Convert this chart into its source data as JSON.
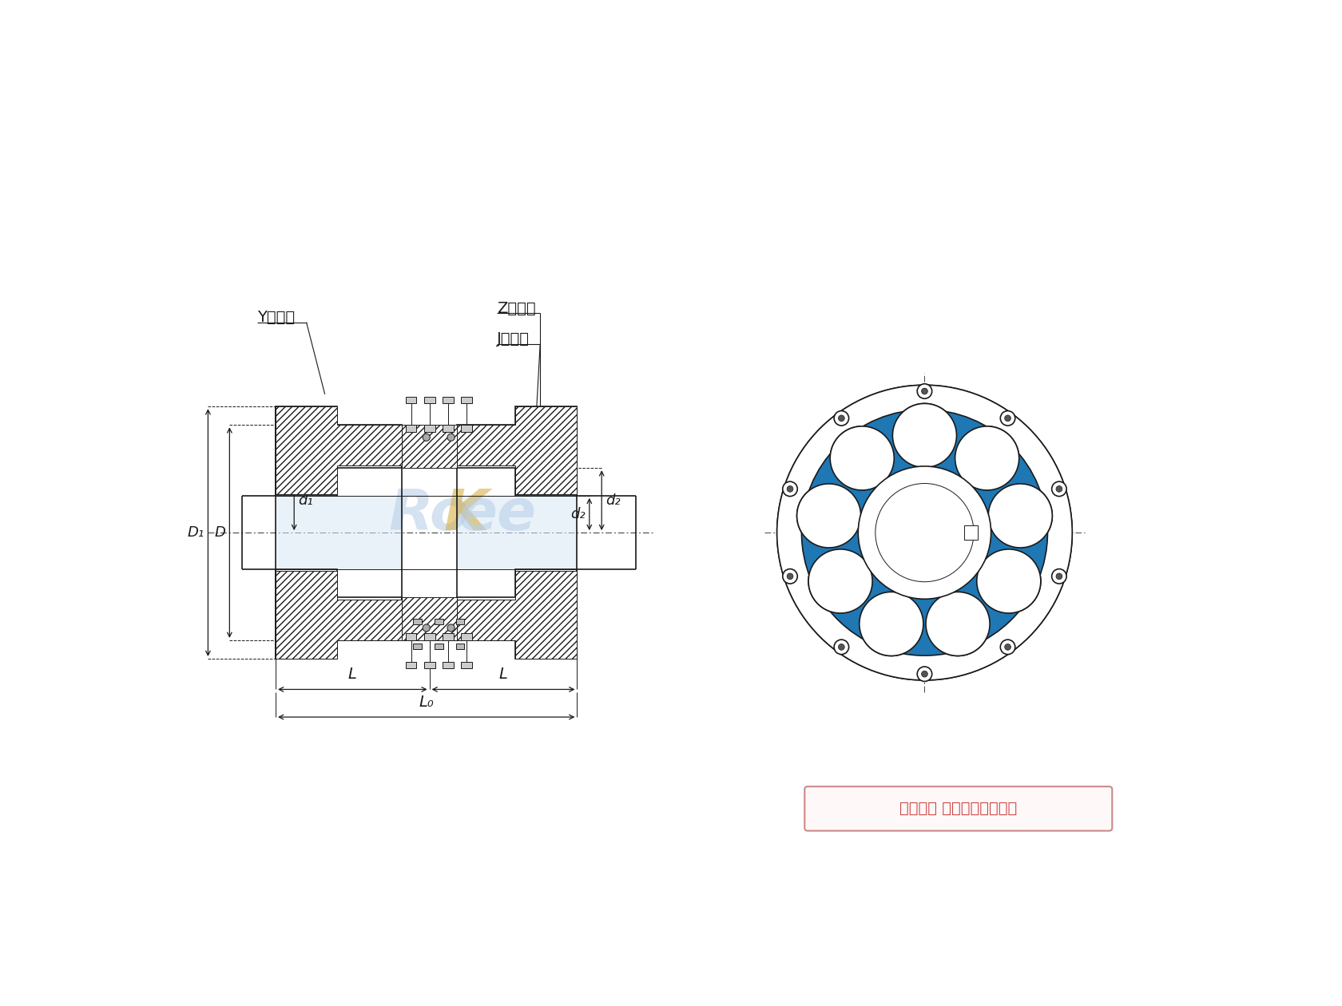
{
  "bg_color": "#ffffff",
  "line_color": "#1a1a1a",
  "watermark_color": "#c8ddf0",
  "dim_color": "#1a1a1a",
  "label_Y": "Y型轴孔",
  "label_Z": "Z型轴孔",
  "label_J": "J型轴孔",
  "label_D1": "D₁",
  "label_D": "D",
  "label_d1": "d₁",
  "label_d2": "d₂",
  "label_dz": "d₂",
  "label_L": "L",
  "label_L0": "L₀",
  "copyright": "版权所有 侵权必被严厅追究",
  "wm_blue": "#b8cfe8",
  "wm_orange": "#d4a832",
  "bolt_gray": "#888888",
  "hatch_bg": "#ffffff"
}
